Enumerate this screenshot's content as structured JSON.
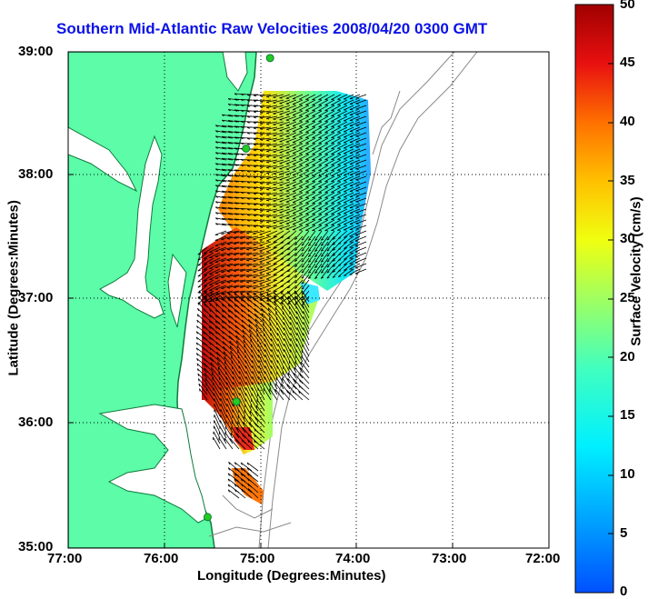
{
  "title": "Southern Mid-Atlantic Raw Velocities 2008/04/20 0300 GMT",
  "axes": {
    "xlabel": "Longitude (Degrees:Minutes)",
    "ylabel": "Latitude (Degrees:Minutes)",
    "xticks": [
      "77:00",
      "76:00",
      "75:00",
      "74:00",
      "73:00",
      "72:00"
    ],
    "yticks": [
      "39:00",
      "38:00",
      "37:00",
      "36:00",
      "35:00"
    ],
    "xlim": [
      -77,
      -72
    ],
    "ylim": [
      35,
      39
    ],
    "grid": "dotted"
  },
  "colorbar": {
    "label": "Surface Velocity (cm/s)",
    "ticks": [
      "0",
      "5",
      "10",
      "15",
      "20",
      "25",
      "30",
      "35",
      "40",
      "45",
      "50"
    ],
    "range": [
      0,
      50
    ],
    "colormap": "jet"
  },
  "colors": {
    "title": "#0b12e6",
    "land": "#5cfca8",
    "water": "#ffffff",
    "coastline": "#0e7a3a",
    "bathymetry": "#8a8a8a",
    "station": "#22cc22"
  },
  "stations": [
    {
      "lon": -74.9,
      "lat": 38.95
    },
    {
      "lon": -75.15,
      "lat": 38.22
    },
    {
      "lon": -75.25,
      "lat": 36.18
    },
    {
      "lon": -75.55,
      "lat": 35.25
    }
  ]
}
